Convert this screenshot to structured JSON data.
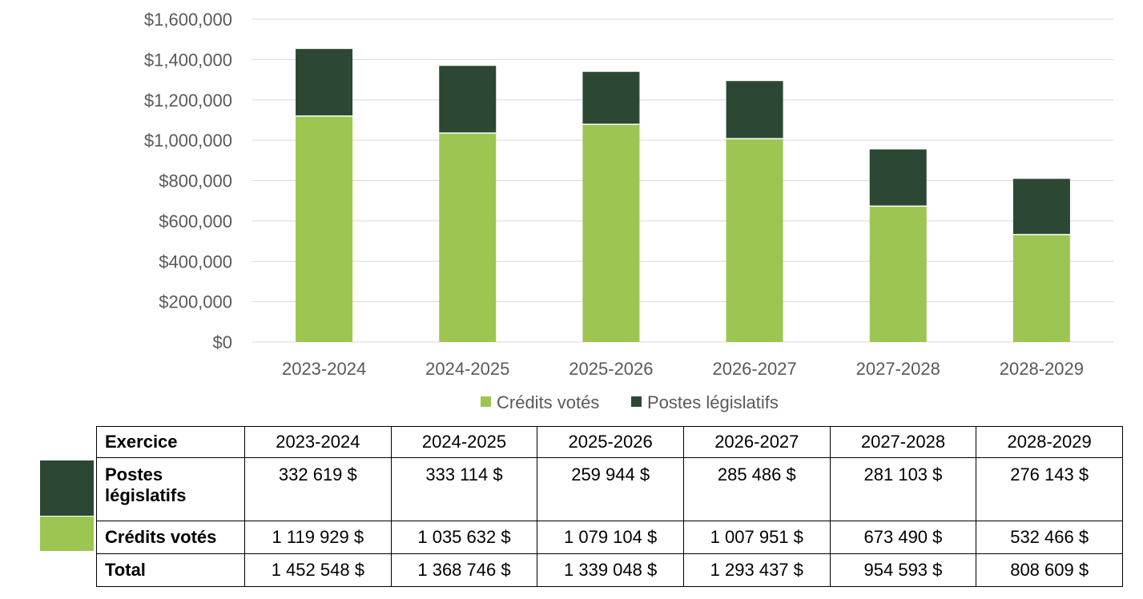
{
  "colors": {
    "credits": "#9DC551",
    "postes": "#2C4734",
    "grid": "#D9D9D9",
    "axis_text": "#595959"
  },
  "chart_data": {
    "type": "bar",
    "stacked": true,
    "categories": [
      "2023-2024",
      "2024-2025",
      "2025-2026",
      "2026-2027",
      "2027-2028",
      "2028-2029"
    ],
    "series": [
      {
        "name": "Crédits votés",
        "values": [
          1119929,
          1035632,
          1079104,
          1007951,
          673490,
          532466
        ]
      },
      {
        "name": "Postes législatifs",
        "values": [
          332619,
          333114,
          259944,
          285486,
          281103,
          276143
        ]
      }
    ],
    "ylim": [
      0,
      1600000
    ],
    "yticks": [
      "$0",
      "$200,000",
      "$400,000",
      "$600,000",
      "$800,000",
      "$1,000,000",
      "$1,200,000",
      "$1,400,000",
      "$1,600,000"
    ],
    "legend_position": "bottom",
    "grid": true
  },
  "table": {
    "header_label": "Exercice",
    "years": [
      "2023-2024",
      "2024-2025",
      "2025-2026",
      "2026-2027",
      "2027-2028",
      "2028-2029"
    ],
    "rows": [
      {
        "label_line1": "Postes",
        "label_line2": "législatifs",
        "values": [
          "332 619 $",
          "333 114 $",
          "259 944 $",
          "285 486 $",
          "281 103 $",
          "276 143 $"
        ]
      },
      {
        "label": "Crédits votés",
        "values": [
          "1 119 929 $",
          "1 035 632 $",
          "1 079 104 $",
          "1 007 951 $",
          "673 490 $",
          "532 466 $"
        ]
      },
      {
        "label": "Total",
        "values": [
          "1 452 548 $",
          "1 368 746 $",
          "1 339 048 $",
          "1 293 437 $",
          "954 593 $",
          "808 609 $"
        ]
      }
    ]
  }
}
